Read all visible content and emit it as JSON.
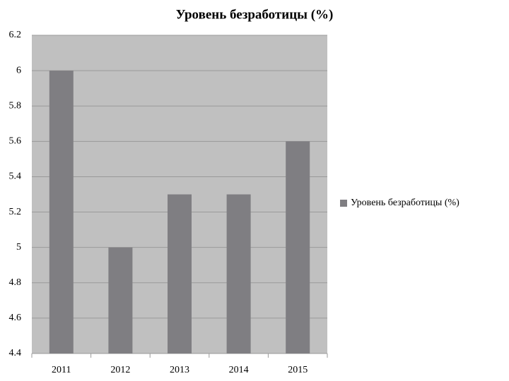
{
  "chart_data": {
    "type": "bar",
    "title": "Уровень безработицы (%)",
    "categories": [
      "2011",
      "2012",
      "2013",
      "2014",
      "2015"
    ],
    "series": [
      {
        "name": "Уровень безработицы (%)",
        "color": "#7f7e82",
        "values": [
          6,
          5,
          5.3,
          5.3,
          5.6
        ]
      }
    ],
    "ylim": [
      4.4,
      6.2
    ],
    "yticks": [
      4.4,
      4.6,
      4.8,
      5,
      5.2,
      5.4,
      5.6,
      5.8,
      6,
      6.2
    ],
    "grid": true,
    "legend": "right"
  }
}
